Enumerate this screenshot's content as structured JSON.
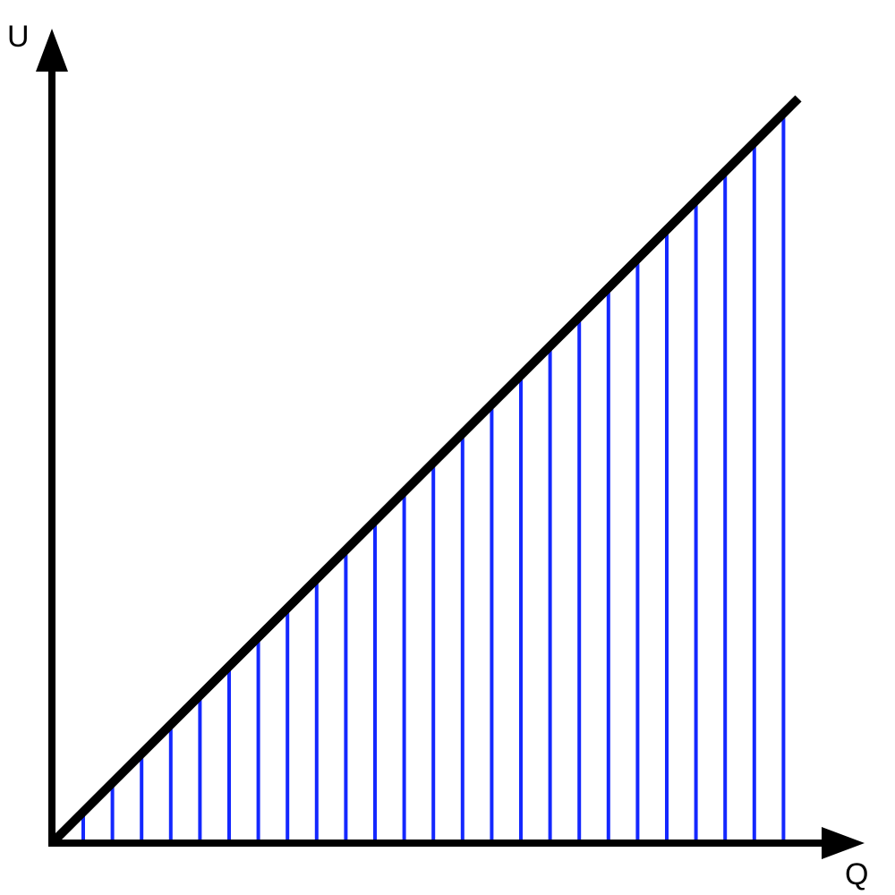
{
  "diagram": {
    "axes": {
      "y_label": "U",
      "x_label": "Q"
    },
    "line": {
      "description_color": "#000000"
    },
    "hatching": {
      "color": "#1428ff",
      "count": 25
    },
    "colors": {
      "axes": "#000000",
      "line": "#000000",
      "hatch": "#1428ff",
      "background": "#ffffff"
    }
  }
}
